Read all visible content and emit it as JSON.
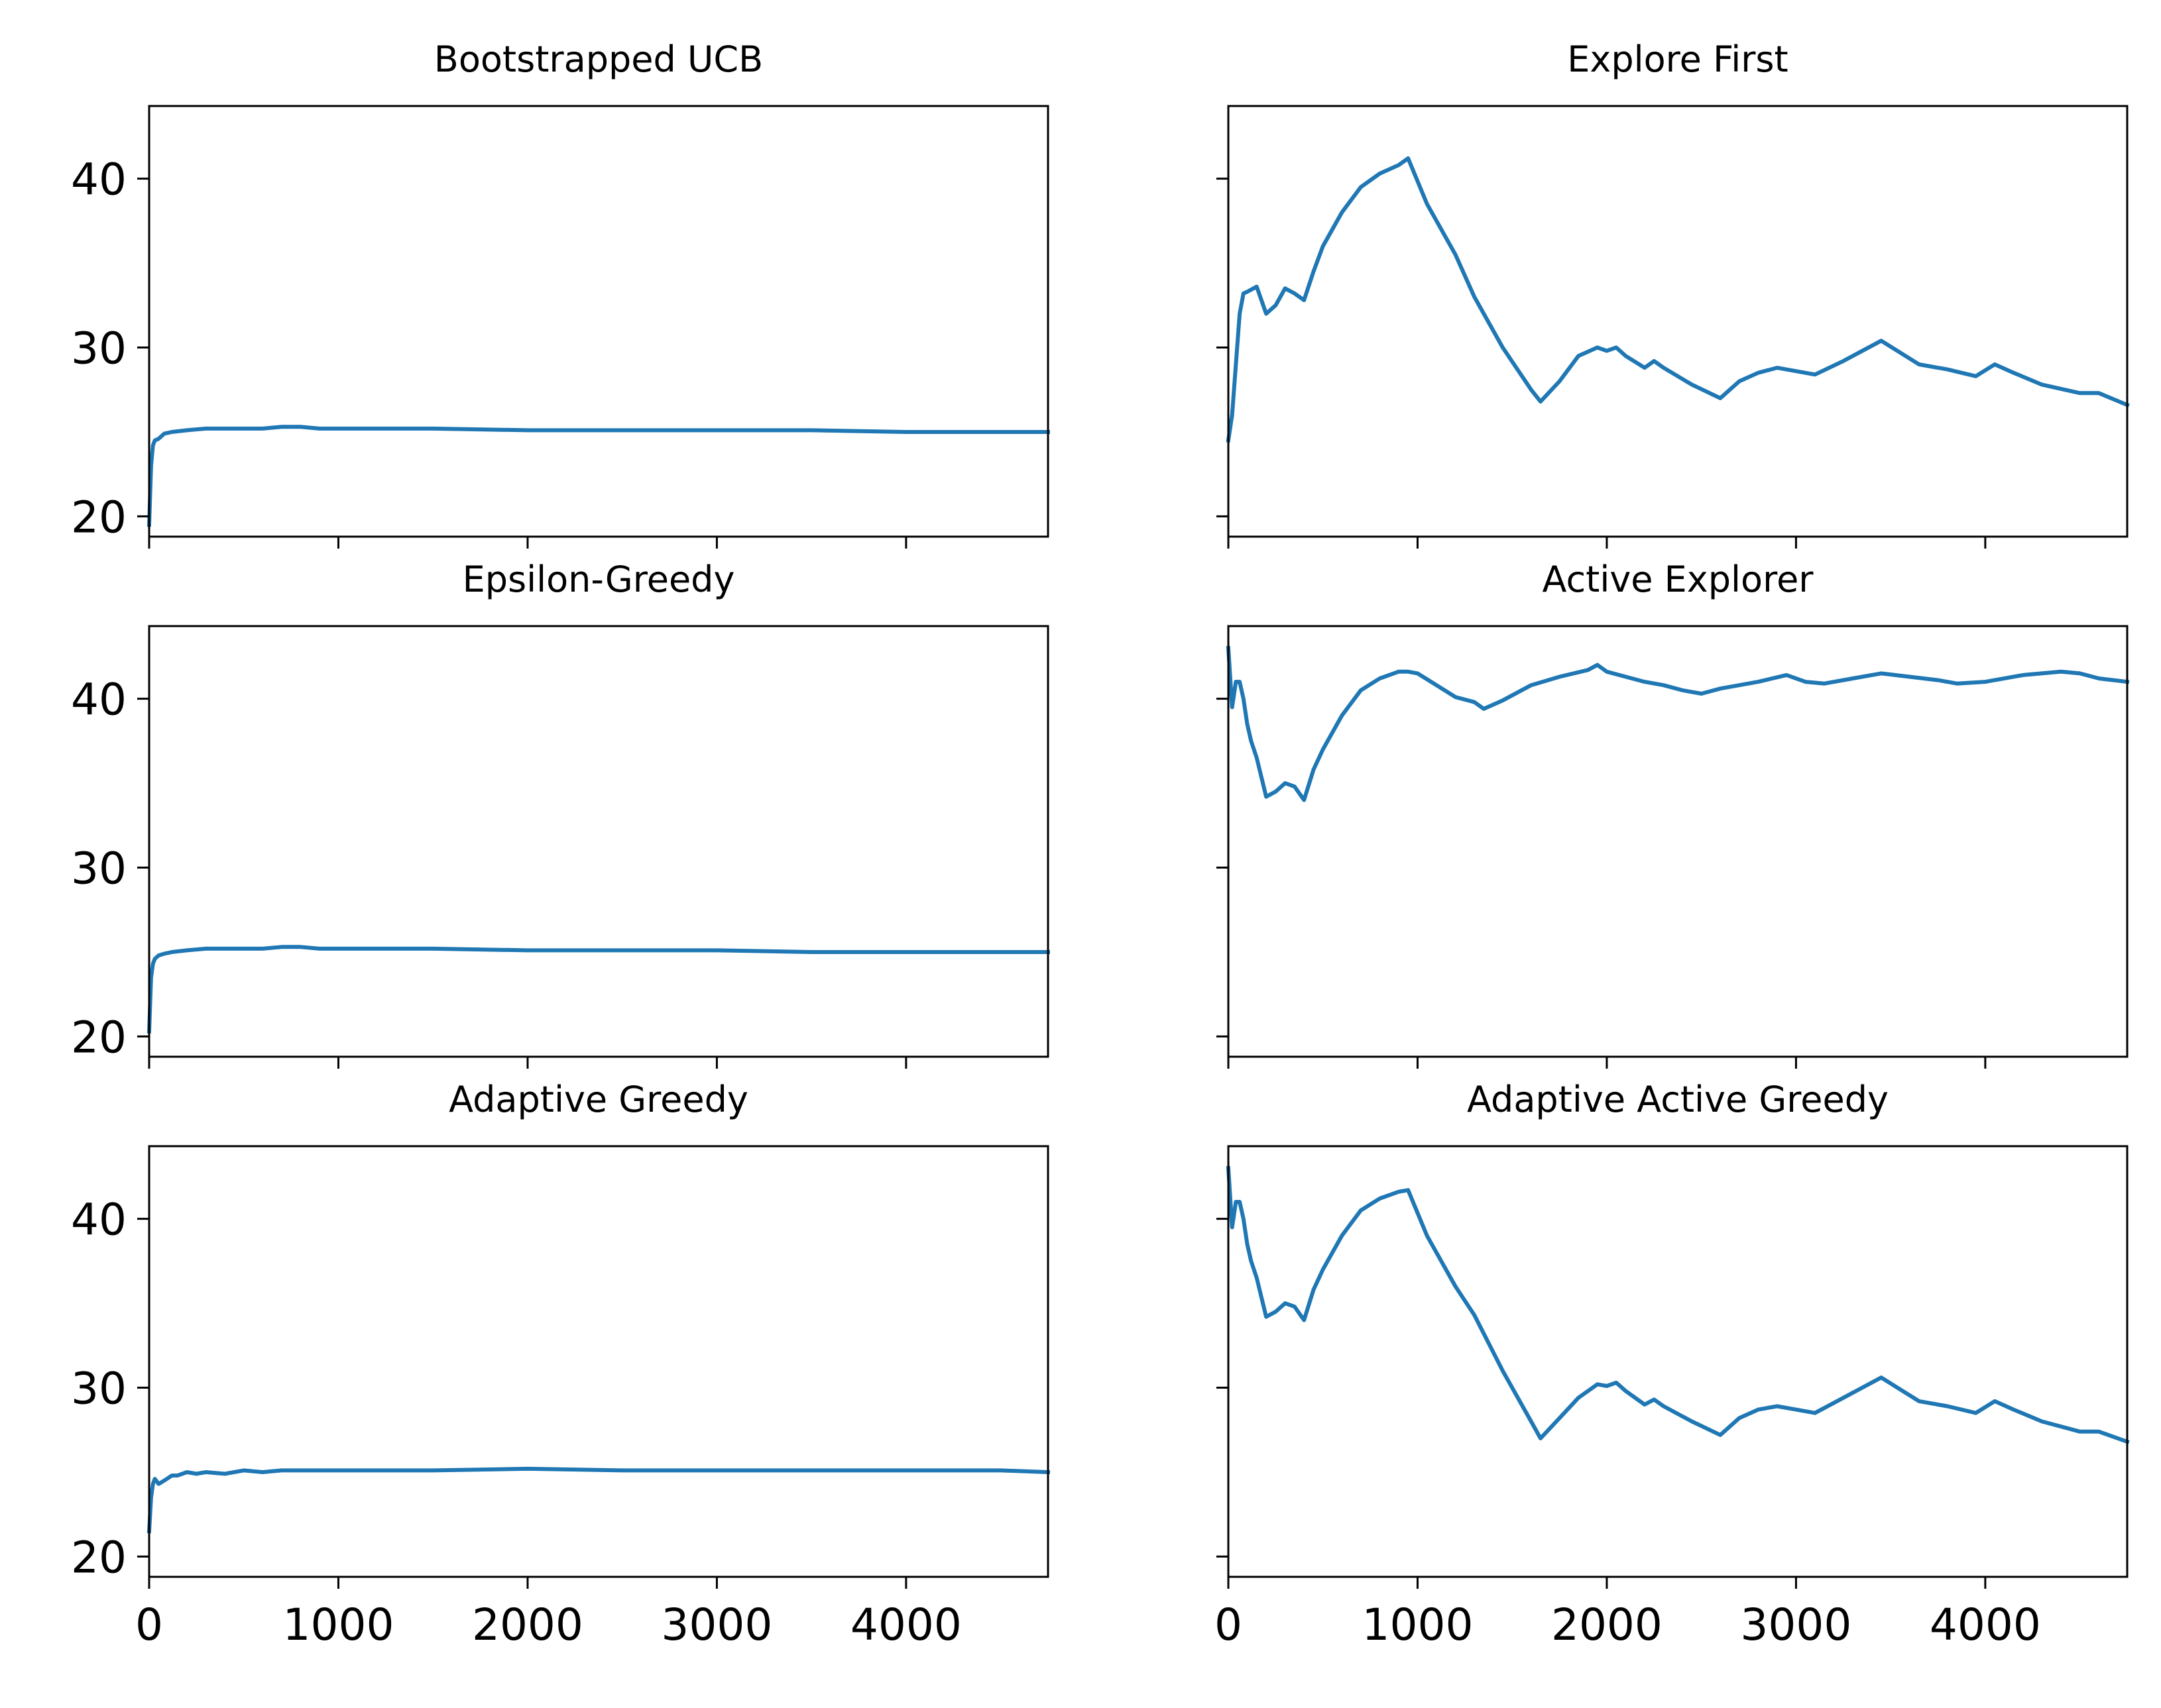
{
  "figure": {
    "line_color": "#1f77b4",
    "axes_color": "#000000",
    "background": "#ffffff"
  },
  "chart_data": [
    {
      "type": "line",
      "title": "Bootstrapped UCB",
      "xlim": [
        0,
        4750
      ],
      "ylim": [
        18.8,
        44.3
      ],
      "yticks": [
        20,
        30,
        40
      ],
      "xticks": [
        0,
        1000,
        2000,
        3000,
        4000
      ],
      "x": [
        0,
        10,
        20,
        30,
        50,
        80,
        120,
        200,
        300,
        400,
        500,
        600,
        700,
        800,
        900,
        1000,
        1200,
        1500,
        2000,
        2500,
        3000,
        3500,
        4000,
        4500,
        4750
      ],
      "y": [
        19.5,
        23.0,
        24.2,
        24.5,
        24.6,
        24.9,
        25.0,
        25.1,
        25.2,
        25.2,
        25.2,
        25.2,
        25.3,
        25.3,
        25.2,
        25.2,
        25.2,
        25.2,
        25.1,
        25.1,
        25.1,
        25.1,
        25.0,
        25.0,
        25.0
      ]
    },
    {
      "type": "line",
      "title": "Explore First",
      "xlim": [
        0,
        4750
      ],
      "ylim": [
        18.8,
        44.3
      ],
      "yticks": [
        20,
        30,
        40
      ],
      "xticks": [
        0,
        1000,
        2000,
        3000,
        4000
      ],
      "x": [
        0,
        20,
        40,
        60,
        80,
        100,
        150,
        200,
        250,
        300,
        350,
        400,
        450,
        500,
        600,
        700,
        800,
        900,
        950,
        1050,
        1200,
        1300,
        1450,
        1600,
        1650,
        1750,
        1850,
        1950,
        2000,
        2050,
        2100,
        2200,
        2250,
        2300,
        2450,
        2600,
        2700,
        2800,
        2900,
        3000,
        3100,
        3250,
        3450,
        3650,
        3800,
        3950,
        4050,
        4150,
        4300,
        4500,
        4600,
        4750
      ],
      "y": [
        24.5,
        26.0,
        29.0,
        32.0,
        33.2,
        33.3,
        33.6,
        32.0,
        32.5,
        33.5,
        33.2,
        32.8,
        34.5,
        36.0,
        38.0,
        39.5,
        40.3,
        40.8,
        41.2,
        38.5,
        35.5,
        33.0,
        30.0,
        27.5,
        26.8,
        28.0,
        29.5,
        30.0,
        29.8,
        30.0,
        29.5,
        28.8,
        29.2,
        28.8,
        27.8,
        27.0,
        28.0,
        28.5,
        28.8,
        28.6,
        28.4,
        29.2,
        30.4,
        29.0,
        28.7,
        28.3,
        29.0,
        28.5,
        27.8,
        27.3,
        27.3,
        26.6
      ]
    },
    {
      "type": "line",
      "title": "Epsilon-Greedy",
      "xlim": [
        0,
        4750
      ],
      "ylim": [
        18.8,
        44.3
      ],
      "yticks": [
        20,
        30,
        40
      ],
      "xticks": [
        0,
        1000,
        2000,
        3000,
        4000
      ],
      "x": [
        0,
        10,
        20,
        30,
        50,
        80,
        120,
        200,
        300,
        400,
        500,
        600,
        700,
        800,
        900,
        1000,
        1200,
        1500,
        2000,
        2500,
        3000,
        3500,
        4000,
        4500,
        4750
      ],
      "y": [
        20.3,
        23.5,
        24.3,
        24.6,
        24.8,
        24.9,
        25.0,
        25.1,
        25.2,
        25.2,
        25.2,
        25.2,
        25.3,
        25.3,
        25.2,
        25.2,
        25.2,
        25.2,
        25.1,
        25.1,
        25.1,
        25.0,
        25.0,
        25.0,
        25.0
      ]
    },
    {
      "type": "line",
      "title": "Active Explorer",
      "xlim": [
        0,
        4750
      ],
      "ylim": [
        18.8,
        44.3
      ],
      "yticks": [
        20,
        30,
        40
      ],
      "xticks": [
        0,
        1000,
        2000,
        3000,
        4000
      ],
      "x": [
        0,
        20,
        40,
        60,
        80,
        100,
        120,
        150,
        200,
        250,
        300,
        350,
        400,
        450,
        500,
        600,
        700,
        800,
        900,
        950,
        1000,
        1100,
        1200,
        1300,
        1350,
        1450,
        1600,
        1750,
        1900,
        1950,
        2000,
        2100,
        2200,
        2300,
        2400,
        2500,
        2600,
        2800,
        2950,
        3050,
        3150,
        3300,
        3450,
        3600,
        3750,
        3850,
        4000,
        4200,
        4400,
        4500,
        4600,
        4750
      ],
      "y": [
        43.0,
        39.5,
        41.0,
        41.0,
        40.0,
        38.5,
        37.5,
        36.5,
        34.2,
        34.5,
        35.0,
        34.8,
        34.0,
        35.8,
        37.0,
        39.0,
        40.5,
        41.2,
        41.6,
        41.6,
        41.5,
        40.8,
        40.1,
        39.8,
        39.4,
        39.9,
        40.8,
        41.3,
        41.7,
        42.0,
        41.6,
        41.3,
        41.0,
        40.8,
        40.5,
        40.3,
        40.6,
        41.0,
        41.4,
        41.0,
        40.9,
        41.2,
        41.5,
        41.3,
        41.1,
        40.9,
        41.0,
        41.4,
        41.6,
        41.5,
        41.2,
        41.0
      ]
    },
    {
      "type": "line",
      "title": "Adaptive Greedy",
      "xlim": [
        0,
        4750
      ],
      "ylim": [
        18.8,
        44.3
      ],
      "yticks": [
        20,
        30,
        40
      ],
      "xticks": [
        0,
        1000,
        2000,
        3000,
        4000
      ],
      "x": [
        0,
        10,
        20,
        30,
        50,
        80,
        120,
        150,
        200,
        250,
        300,
        400,
        500,
        600,
        700,
        800,
        1000,
        1500,
        2000,
        2500,
        3000,
        3500,
        4000,
        4500,
        4750
      ],
      "y": [
        21.5,
        23.5,
        24.3,
        24.6,
        24.3,
        24.5,
        24.8,
        24.8,
        25.0,
        24.9,
        25.0,
        24.9,
        25.1,
        25.0,
        25.1,
        25.1,
        25.1,
        25.1,
        25.2,
        25.1,
        25.1,
        25.1,
        25.1,
        25.1,
        25.0
      ]
    },
    {
      "type": "line",
      "title": "Adaptive Active Greedy",
      "xlim": [
        0,
        4750
      ],
      "ylim": [
        18.8,
        44.3
      ],
      "yticks": [
        20,
        30,
        40
      ],
      "xticks": [
        0,
        1000,
        2000,
        3000,
        4000
      ],
      "x": [
        0,
        20,
        40,
        60,
        80,
        100,
        120,
        150,
        200,
        250,
        300,
        350,
        400,
        450,
        500,
        600,
        700,
        800,
        900,
        950,
        1050,
        1200,
        1300,
        1450,
        1600,
        1650,
        1750,
        1850,
        1950,
        2000,
        2050,
        2100,
        2200,
        2250,
        2300,
        2450,
        2600,
        2700,
        2800,
        2900,
        3000,
        3100,
        3250,
        3450,
        3650,
        3800,
        3950,
        4050,
        4150,
        4300,
        4500,
        4600,
        4750
      ],
      "y": [
        43.0,
        39.5,
        41.0,
        41.0,
        40.0,
        38.5,
        37.5,
        36.5,
        34.2,
        34.5,
        35.0,
        34.8,
        34.0,
        35.8,
        37.0,
        39.0,
        40.5,
        41.2,
        41.6,
        41.7,
        39.0,
        36.0,
        34.3,
        31.0,
        28.0,
        27.0,
        28.2,
        29.4,
        30.2,
        30.1,
        30.3,
        29.8,
        29.0,
        29.3,
        28.9,
        28.0,
        27.2,
        28.2,
        28.7,
        28.9,
        28.7,
        28.5,
        29.4,
        30.6,
        29.2,
        28.9,
        28.5,
        29.2,
        28.7,
        28.0,
        27.4,
        27.4,
        26.8
      ]
    }
  ]
}
